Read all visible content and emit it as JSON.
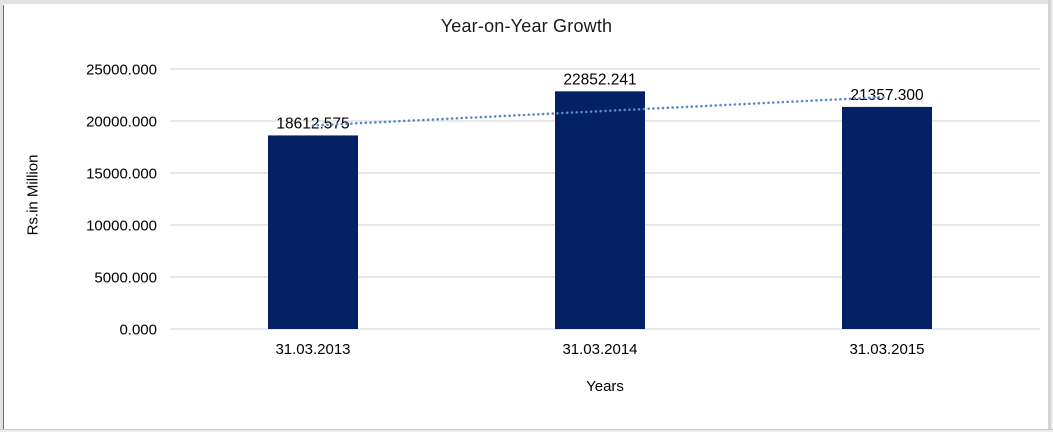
{
  "chart_data": {
    "type": "bar",
    "title": "Year-on-Year Growth",
    "xlabel": "Years",
    "ylabel": "Rs.in Million",
    "categories": [
      "31.03.2013",
      "31.03.2014",
      "31.03.2015"
    ],
    "values": [
      18612.575,
      22852.241,
      21357.3
    ],
    "data_labels": [
      "18612.575",
      "22852.241",
      "21357.300"
    ],
    "ylim": [
      0,
      25000
    ],
    "ytick_step": 5000,
    "ytick_labels": [
      "0.000",
      "5000.000",
      "10000.000",
      "15000.000",
      "20000.000",
      "25000.000"
    ],
    "grid": true,
    "legend": "none",
    "trendline": {
      "type": "linear",
      "style": "dotted"
    },
    "colors": {
      "bar": "#042166",
      "trendline": "#5589c7",
      "gridline": "#d9d9d9",
      "text": "#000000"
    }
  }
}
